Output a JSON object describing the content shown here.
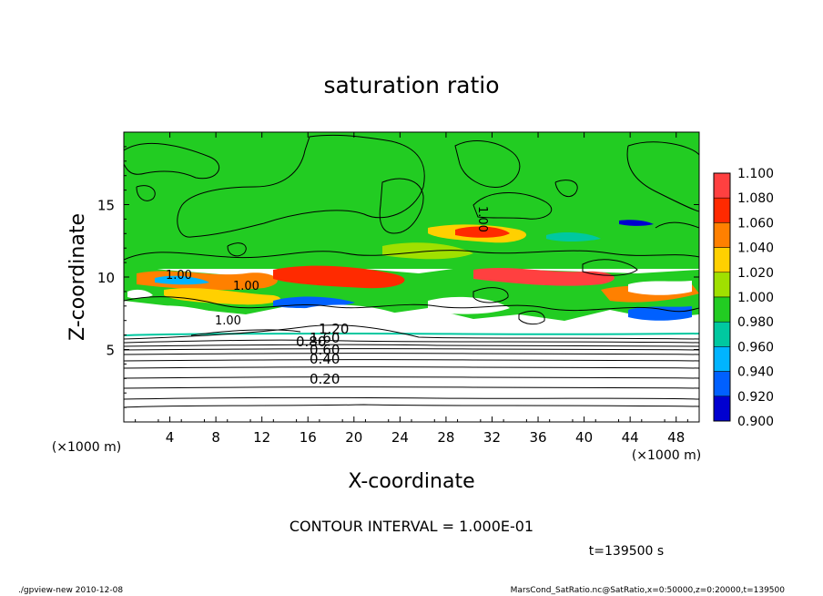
{
  "chart_data": {
    "type": "heatmap",
    "title": "saturation ratio",
    "xlabel": "X-coordinate",
    "ylabel": "Z-coordinate",
    "x_unit": "(×1000 m)",
    "y_unit": "(×1000 m)",
    "xlim": [
      0,
      50
    ],
    "ylim": [
      0,
      20
    ],
    "x_ticks": [
      4,
      8,
      12,
      16,
      20,
      24,
      28,
      32,
      36,
      40,
      44,
      48
    ],
    "y_ticks": [
      5,
      10,
      15
    ],
    "colorbar": {
      "levels": [
        1.1,
        1.08,
        1.06,
        1.04,
        1.02,
        1.0,
        0.98,
        0.96,
        0.94,
        0.92,
        0.9
      ],
      "labels": [
        "1.100",
        "1.080",
        "1.060",
        "1.040",
        "1.020",
        "1.000",
        "0.980",
        "0.960",
        "0.940",
        "0.920",
        "0.900"
      ],
      "colors": [
        "#ff8080",
        "#ff4040",
        "#ff2a00",
        "#ff8000",
        "#ffd000",
        "#a0e000",
        "#22cc22",
        "#00c8a0",
        "#00b4ff",
        "#0060ff",
        "#0000d0",
        "#6a00b0"
      ]
    },
    "contour_labels": [
      "1.00",
      "1.00",
      "1.00",
      "1.20",
      "1.60",
      "0.80",
      "0.60",
      "0.40",
      "0.20",
      "1.00"
    ],
    "contour_interval_text": "CONTOUR INTERVAL = 1.000E-01",
    "time_text": "t=139500 s",
    "footer_left": "./gpview-new  2010-12-08",
    "footer_right": "MarsCond_SatRatio.nc@SatRatio,x=0:50000,z=0:20000,t=139500"
  }
}
